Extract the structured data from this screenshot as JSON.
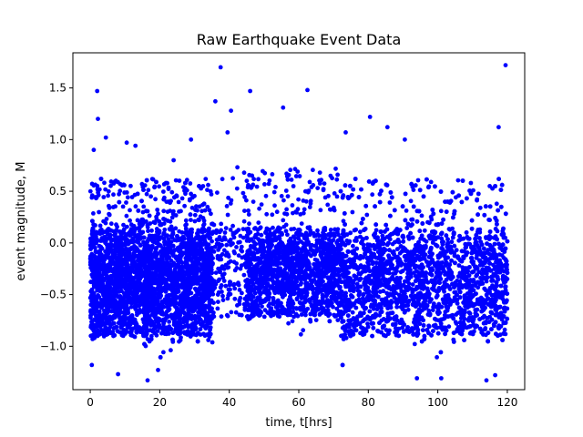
{
  "chart_data": {
    "type": "scatter",
    "title": "Raw Earthquake Event Data",
    "xlabel": "time, t[hrs]",
    "ylabel": "event magnitude, M",
    "xlim": [
      -5,
      125
    ],
    "ylim": [
      -1.42,
      1.84
    ],
    "xticks": [
      0,
      20,
      40,
      60,
      80,
      100,
      120
    ],
    "yticks": [
      -1.0,
      -0.5,
      0.0,
      0.5,
      1.0,
      1.5
    ],
    "xtick_labels": [
      "0",
      "20",
      "40",
      "60",
      "80",
      "100",
      "120"
    ],
    "ytick_labels": [
      "−1.0",
      "−0.5",
      "0.0",
      "0.5",
      "1.0",
      "1.5"
    ],
    "grid": false,
    "marker_color": "#0000ff",
    "series": [
      {
        "segments": [
          {
            "t": [
              0,
              35
            ],
            "center": -0.38,
            "spread": 0.36,
            "density": "very high"
          },
          {
            "t": [
              35,
              45
            ],
            "center": -0.25,
            "spread": 0.32,
            "density": "low"
          },
          {
            "t": [
              45,
              72
            ],
            "center": -0.28,
            "spread": 0.3,
            "density": "high"
          },
          {
            "t": [
              72,
              120
            ],
            "center": -0.38,
            "spread": 0.36,
            "density": "very high"
          }
        ],
        "notable_points": [
          {
            "x": 1,
            "y": 0.9
          },
          {
            "x": 2,
            "y": 1.47
          },
          {
            "x": 2.2,
            "y": 1.2
          },
          {
            "x": 4.5,
            "y": 1.02
          },
          {
            "x": 10.5,
            "y": 0.97
          },
          {
            "x": 13,
            "y": 0.94
          },
          {
            "x": 24,
            "y": 0.8
          },
          {
            "x": 29,
            "y": 1.0
          },
          {
            "x": 36,
            "y": 1.37
          },
          {
            "x": 37.5,
            "y": 1.7
          },
          {
            "x": 39.5,
            "y": 1.07
          },
          {
            "x": 40.5,
            "y": 1.28
          },
          {
            "x": 46,
            "y": 1.47
          },
          {
            "x": 55.5,
            "y": 1.31
          },
          {
            "x": 62.5,
            "y": 1.48
          },
          {
            "x": 73.5,
            "y": 1.07
          },
          {
            "x": 80.5,
            "y": 1.22
          },
          {
            "x": 85.5,
            "y": 1.12
          },
          {
            "x": 90.5,
            "y": 1.0
          },
          {
            "x": 117.5,
            "y": 1.12
          },
          {
            "x": 119.5,
            "y": 1.72
          },
          {
            "x": 8,
            "y": -1.27
          },
          {
            "x": 16.5,
            "y": -1.33
          },
          {
            "x": 19.5,
            "y": -1.23
          },
          {
            "x": 94,
            "y": -1.31
          },
          {
            "x": 101,
            "y": -1.31
          },
          {
            "x": 114,
            "y": -1.33
          },
          {
            "x": 116.5,
            "y": -1.28
          }
        ]
      }
    ]
  }
}
